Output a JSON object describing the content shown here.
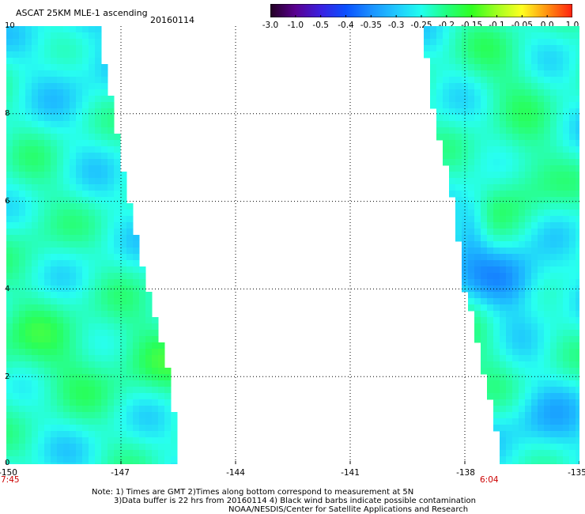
{
  "header": {
    "title": "ASCAT 25KM MLE-1 ascending",
    "date": "20160114"
  },
  "colorbar": {
    "labels": [
      "-3.0",
      "-1.0",
      "-0.5",
      "-0.4",
      "-0.35",
      "-0.3",
      "-0.25",
      "-0.2",
      "-0.15",
      "-0.1",
      "-0.05",
      "0.0",
      "1.0"
    ],
    "colors": [
      "#220022",
      "#5a0090",
      "#3a20e0",
      "#0a50ff",
      "#1a90ff",
      "#20c8ff",
      "#20ffee",
      "#20ff80",
      "#30ff20",
      "#a0ff20",
      "#ffff20",
      "#ff9010",
      "#ff2010"
    ]
  },
  "map": {
    "lon_range": [
      -150,
      -135
    ],
    "lat_range": [
      0,
      10
    ],
    "x_ticks": [
      "-150",
      "-147",
      "-144",
      "-141",
      "-138",
      "-135"
    ],
    "y_ticks": [
      "0",
      "2",
      "4",
      "6",
      "8",
      "10"
    ],
    "grid_lons": [
      -147,
      -144,
      -141,
      -138
    ],
    "grid_lats": [
      2,
      4,
      6,
      8
    ],
    "swath_left_edge": [
      [
        -147.6,
        10
      ],
      [
        -147.2,
        8
      ],
      [
        -146.8,
        6
      ],
      [
        -146.3,
        4
      ],
      [
        -146.0,
        3
      ],
      [
        -145.7,
        2
      ],
      [
        -145.6,
        1
      ],
      [
        -145.5,
        0
      ]
    ],
    "swath_right_edge": [
      [
        -139.1,
        10
      ],
      [
        -138.8,
        8
      ],
      [
        -138.3,
        6
      ],
      [
        -138.0,
        4
      ],
      [
        -137.7,
        3
      ],
      [
        -137.5,
        2
      ],
      [
        -137.2,
        1
      ],
      [
        -137.1,
        0
      ]
    ],
    "start_time": "7:45",
    "end_time": "6:04"
  },
  "notes": {
    "line1": "Note: 1) Times are GMT 2)Times along bottom correspond to measurement at 5N",
    "line2": "3)Data buffer is 22 hrs from 20160114 4) Black wind barbs indicate possible contamination",
    "line3": "NOAA/NESDIS/Center for Satellite Applications and Research"
  }
}
